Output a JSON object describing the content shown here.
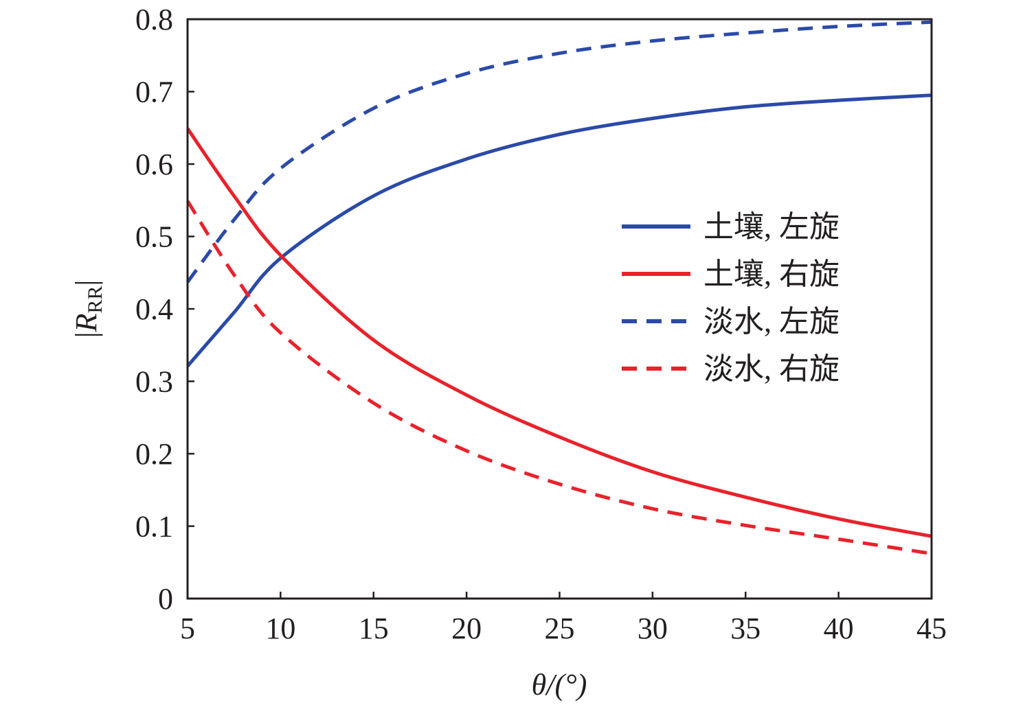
{
  "chart_data": {
    "type": "line",
    "title": "",
    "xlabel": "θ/(°)",
    "ylabel": "|R_RR|",
    "ylabel_main": "R",
    "ylabel_sub": "RR",
    "xlim": [
      5,
      45
    ],
    "ylim": [
      0,
      0.8
    ],
    "xticks": [
      "5",
      "10",
      "15",
      "20",
      "25",
      "30",
      "35",
      "40",
      "45"
    ],
    "yticks": [
      "0",
      "0.1",
      "0.2",
      "0.3",
      "0.4",
      "0.5",
      "0.6",
      "0.7",
      "0.8"
    ],
    "grid": false,
    "legend_position": "center-right",
    "x": [
      5,
      7.5,
      10,
      15,
      20,
      25,
      30,
      35,
      40,
      45
    ],
    "series": [
      {
        "name": "土壤, 左旋",
        "color": "#2b4aa8",
        "dash": false,
        "values": [
          0.321,
          0.395,
          0.47,
          0.556,
          0.607,
          0.641,
          0.663,
          0.679,
          0.688,
          0.695
        ]
      },
      {
        "name": "土壤, 右旋",
        "color": "#e8222b",
        "dash": false,
        "values": [
          0.649,
          0.556,
          0.474,
          0.357,
          0.281,
          0.223,
          0.175,
          0.14,
          0.11,
          0.086
        ]
      },
      {
        "name": "淡水, 左旋",
        "color": "#2b4aa8",
        "dash": true,
        "values": [
          0.437,
          0.523,
          0.594,
          0.677,
          0.725,
          0.753,
          0.77,
          0.781,
          0.79,
          0.796
        ]
      },
      {
        "name": "淡水, 右旋",
        "color": "#e8222b",
        "dash": true,
        "values": [
          0.549,
          0.447,
          0.367,
          0.27,
          0.204,
          0.158,
          0.124,
          0.101,
          0.082,
          0.062
        ]
      }
    ]
  }
}
